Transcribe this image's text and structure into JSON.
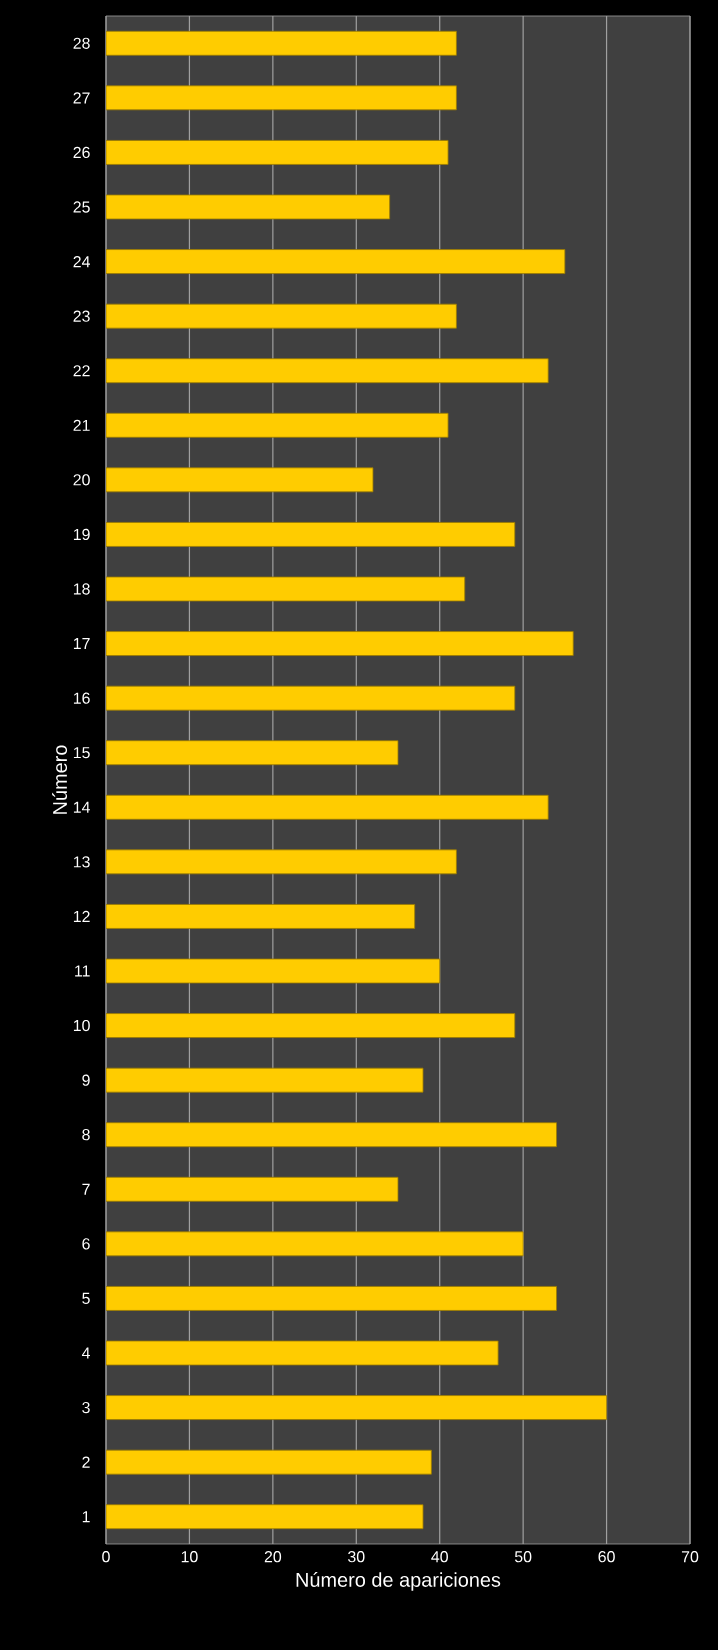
{
  "chart_data": {
    "type": "bar",
    "orientation": "horizontal",
    "xlabel": "Número  de apariciones",
    "ylabel": "Número",
    "categories": [
      "28",
      "27",
      "26",
      "25",
      "24",
      "23",
      "22",
      "21",
      "20",
      "19",
      "18",
      "17",
      "16",
      "15",
      "14",
      "13",
      "12",
      "11",
      "10",
      "9",
      "8",
      "7",
      "6",
      "5",
      "4",
      "3",
      "2",
      "1"
    ],
    "values": [
      42,
      42,
      41,
      34,
      55,
      42,
      53,
      41,
      32,
      49,
      43,
      56,
      49,
      35,
      53,
      42,
      37,
      40,
      49,
      38,
      54,
      35,
      50,
      54,
      47,
      60,
      39,
      38
    ],
    "color": "#ffcc00",
    "xlim": [
      0,
      70
    ],
    "xticks": [
      0,
      10,
      20,
      30,
      40,
      50,
      60,
      70
    ],
    "grid": "x"
  }
}
